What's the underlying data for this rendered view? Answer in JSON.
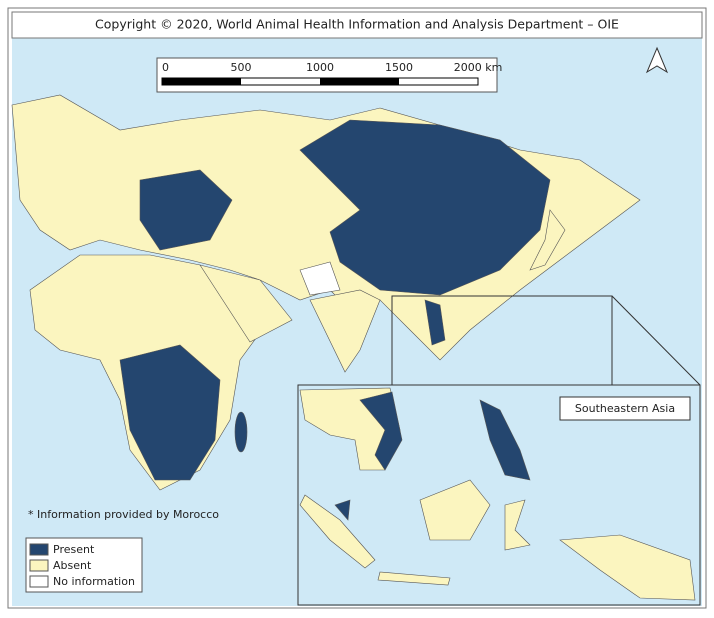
{
  "header": {
    "title": "Copyright © 2020, World Animal Health Information and Analysis Department – OIE"
  },
  "scale_bar": {
    "labels": [
      "0",
      "500",
      "1000",
      "1500",
      "2000 km"
    ]
  },
  "inset": {
    "label": "Southeastern Asia"
  },
  "note": "* Information provided by Morocco",
  "legend": {
    "items": [
      {
        "label": "Present",
        "color": "#24466f"
      },
      {
        "label": "Absent",
        "color": "#fbf5bf"
      },
      {
        "label": "No information",
        "color": "#ffffff"
      }
    ]
  },
  "sea_color": "#cfe9f6"
}
